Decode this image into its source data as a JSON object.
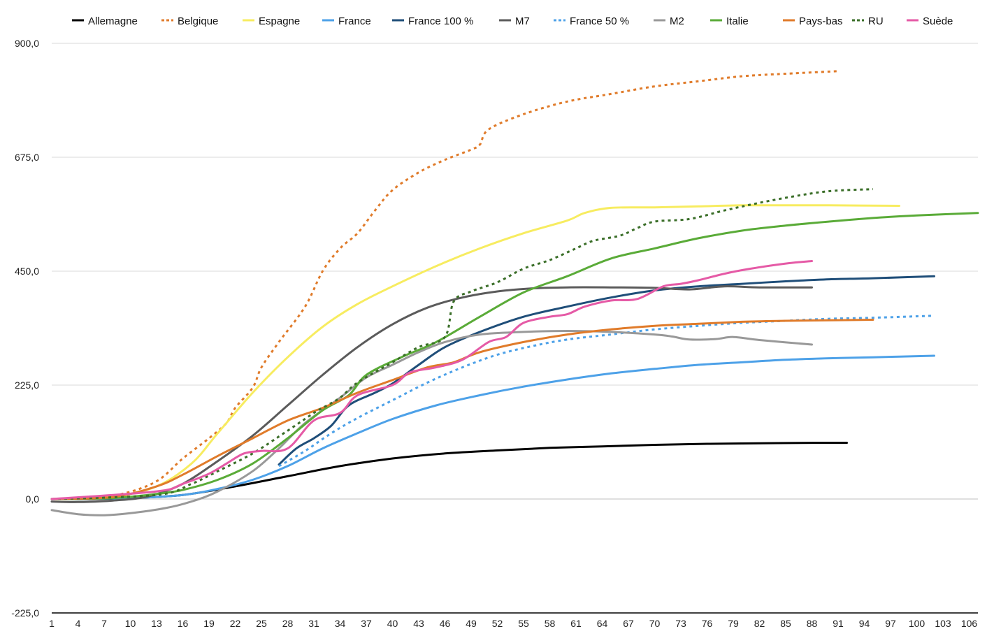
{
  "chart_data": {
    "type": "line",
    "title": "",
    "xlabel": "",
    "ylabel": "",
    "ylim": [
      -225,
      900
    ],
    "xlim": [
      1,
      107
    ],
    "grid": "horizontal",
    "legend_position": "top",
    "yticks": [
      {
        "value": -225,
        "label": "-225,0"
      },
      {
        "value": 0,
        "label": "0,0"
      },
      {
        "value": 225,
        "label": "225,0"
      },
      {
        "value": 450,
        "label": "450,0"
      },
      {
        "value": 675,
        "label": "675,0"
      },
      {
        "value": 900,
        "label": "900,0"
      }
    ],
    "xticks": [
      1,
      4,
      7,
      10,
      13,
      16,
      19,
      22,
      25,
      28,
      31,
      34,
      37,
      40,
      43,
      46,
      49,
      52,
      55,
      58,
      61,
      64,
      67,
      70,
      73,
      76,
      79,
      82,
      85,
      88,
      91,
      94,
      97,
      100,
      103,
      106
    ],
    "series": [
      {
        "name": "Allemagne",
        "color": "#000000",
        "dash": "solid",
        "points": [
          [
            1,
            0
          ],
          [
            5,
            0
          ],
          [
            10,
            2
          ],
          [
            16,
            8
          ],
          [
            22,
            25
          ],
          [
            28,
            45
          ],
          [
            34,
            65
          ],
          [
            40,
            80
          ],
          [
            46,
            90
          ],
          [
            52,
            96
          ],
          [
            58,
            101
          ],
          [
            64,
            104
          ],
          [
            70,
            107
          ],
          [
            76,
            109
          ],
          [
            82,
            110
          ],
          [
            88,
            111
          ],
          [
            92,
            111
          ]
        ]
      },
      {
        "name": "Belgique",
        "color": "#e07b2a",
        "dash": "dashed",
        "points": [
          [
            1,
            0
          ],
          [
            5,
            3
          ],
          [
            9,
            10
          ],
          [
            13,
            35
          ],
          [
            16,
            80
          ],
          [
            19,
            120
          ],
          [
            21,
            150
          ],
          [
            22,
            180
          ],
          [
            24,
            220
          ],
          [
            25,
            260
          ],
          [
            27,
            310
          ],
          [
            30,
            380
          ],
          [
            32,
            450
          ],
          [
            34,
            495
          ],
          [
            36,
            525
          ],
          [
            38,
            570
          ],
          [
            40,
            610
          ],
          [
            43,
            645
          ],
          [
            46,
            670
          ],
          [
            49,
            690
          ],
          [
            50,
            700
          ],
          [
            51,
            730
          ],
          [
            55,
            760
          ],
          [
            60,
            785
          ],
          [
            65,
            800
          ],
          [
            70,
            815
          ],
          [
            75,
            825
          ],
          [
            80,
            835
          ],
          [
            85,
            840
          ],
          [
            91,
            845
          ]
        ]
      },
      {
        "name": "Espagne",
        "color": "#f7ec60",
        "dash": "solid",
        "points": [
          [
            1,
            0
          ],
          [
            8,
            5
          ],
          [
            13,
            25
          ],
          [
            17,
            70
          ],
          [
            20,
            130
          ],
          [
            24,
            210
          ],
          [
            28,
            280
          ],
          [
            32,
            340
          ],
          [
            36,
            385
          ],
          [
            40,
            420
          ],
          [
            45,
            460
          ],
          [
            50,
            495
          ],
          [
            55,
            525
          ],
          [
            60,
            550
          ],
          [
            62,
            565
          ],
          [
            65,
            575
          ],
          [
            70,
            576
          ],
          [
            75,
            578
          ],
          [
            80,
            580
          ],
          [
            85,
            580
          ],
          [
            90,
            580
          ],
          [
            98,
            579
          ]
        ]
      },
      {
        "name": "France",
        "color": "#4da1e8",
        "dash": "solid",
        "points": [
          [
            1,
            0
          ],
          [
            10,
            2
          ],
          [
            16,
            8
          ],
          [
            20,
            20
          ],
          [
            24,
            38
          ],
          [
            28,
            65
          ],
          [
            32,
            100
          ],
          [
            36,
            130
          ],
          [
            40,
            158
          ],
          [
            45,
            185
          ],
          [
            50,
            205
          ],
          [
            55,
            222
          ],
          [
            60,
            236
          ],
          [
            65,
            248
          ],
          [
            70,
            257
          ],
          [
            75,
            265
          ],
          [
            80,
            270
          ],
          [
            85,
            275
          ],
          [
            90,
            278
          ],
          [
            95,
            280
          ],
          [
            102,
            283
          ]
        ]
      },
      {
        "name": "France 100 %",
        "color": "#1f4e79",
        "dash": "solid",
        "points": [
          [
            27,
            68
          ],
          [
            29,
            100
          ],
          [
            31,
            120
          ],
          [
            33,
            145
          ],
          [
            35,
            185
          ],
          [
            38,
            210
          ],
          [
            40,
            228
          ],
          [
            43,
            265
          ],
          [
            46,
            300
          ],
          [
            50,
            330
          ],
          [
            55,
            360
          ],
          [
            60,
            380
          ],
          [
            65,
            398
          ],
          [
            70,
            412
          ],
          [
            75,
            420
          ],
          [
            80,
            425
          ],
          [
            85,
            430
          ],
          [
            90,
            434
          ],
          [
            95,
            436
          ],
          [
            102,
            440
          ]
        ]
      },
      {
        "name": "M7",
        "color": "#5b5b5b",
        "dash": "solid",
        "points": [
          [
            1,
            -5
          ],
          [
            4,
            -6
          ],
          [
            8,
            -3
          ],
          [
            12,
            5
          ],
          [
            16,
            30
          ],
          [
            20,
            75
          ],
          [
            24,
            125
          ],
          [
            28,
            185
          ],
          [
            32,
            245
          ],
          [
            36,
            300
          ],
          [
            40,
            345
          ],
          [
            44,
            378
          ],
          [
            48,
            398
          ],
          [
            52,
            410
          ],
          [
            56,
            416
          ],
          [
            60,
            418
          ],
          [
            65,
            418
          ],
          [
            70,
            417
          ],
          [
            74,
            414
          ],
          [
            78,
            420
          ],
          [
            82,
            418
          ],
          [
            88,
            418
          ]
        ]
      },
      {
        "name": "France 50 %",
        "color": "#4da1e8",
        "dash": "dashed",
        "points": [
          [
            27,
            65
          ],
          [
            30,
            95
          ],
          [
            33,
            130
          ],
          [
            36,
            160
          ],
          [
            40,
            195
          ],
          [
            44,
            230
          ],
          [
            48,
            260
          ],
          [
            52,
            285
          ],
          [
            56,
            302
          ],
          [
            60,
            315
          ],
          [
            65,
            325
          ],
          [
            70,
            335
          ],
          [
            75,
            342
          ],
          [
            80,
            348
          ],
          [
            85,
            352
          ],
          [
            90,
            356
          ],
          [
            95,
            358
          ],
          [
            102,
            362
          ]
        ]
      },
      {
        "name": "M2",
        "color": "#999999",
        "dash": "solid",
        "points": [
          [
            1,
            -22
          ],
          [
            4,
            -30
          ],
          [
            7,
            -32
          ],
          [
            10,
            -28
          ],
          [
            14,
            -18
          ],
          [
            17,
            -5
          ],
          [
            20,
            15
          ],
          [
            24,
            55
          ],
          [
            27,
            100
          ],
          [
            30,
            150
          ],
          [
            34,
            200
          ],
          [
            37,
            240
          ],
          [
            40,
            265
          ],
          [
            43,
            290
          ],
          [
            46,
            310
          ],
          [
            50,
            325
          ],
          [
            55,
            330
          ],
          [
            60,
            332
          ],
          [
            65,
            330
          ],
          [
            70,
            325
          ],
          [
            72,
            321
          ],
          [
            74,
            315
          ],
          [
            77,
            316
          ],
          [
            79,
            320
          ],
          [
            82,
            314
          ],
          [
            88,
            305
          ]
        ]
      },
      {
        "name": "Italie",
        "color": "#5aab38",
        "dash": "solid",
        "points": [
          [
            1,
            0
          ],
          [
            8,
            2
          ],
          [
            13,
            10
          ],
          [
            16,
            18
          ],
          [
            20,
            38
          ],
          [
            24,
            70
          ],
          [
            28,
            120
          ],
          [
            32,
            175
          ],
          [
            35,
            205
          ],
          [
            37,
            245
          ],
          [
            41,
            280
          ],
          [
            45,
            310
          ],
          [
            50,
            360
          ],
          [
            55,
            408
          ],
          [
            60,
            440
          ],
          [
            65,
            475
          ],
          [
            70,
            495
          ],
          [
            75,
            515
          ],
          [
            80,
            530
          ],
          [
            85,
            540
          ],
          [
            90,
            548
          ],
          [
            95,
            555
          ],
          [
            100,
            560
          ],
          [
            107,
            565
          ]
        ]
      },
      {
        "name": "Pays-bas",
        "color": "#e07b2a",
        "dash": "solid",
        "points": [
          [
            1,
            0
          ],
          [
            8,
            4
          ],
          [
            13,
            25
          ],
          [
            16,
            48
          ],
          [
            20,
            85
          ],
          [
            24,
            120
          ],
          [
            28,
            155
          ],
          [
            32,
            180
          ],
          [
            36,
            210
          ],
          [
            40,
            235
          ],
          [
            44,
            260
          ],
          [
            47,
            270
          ],
          [
            50,
            290
          ],
          [
            55,
            310
          ],
          [
            60,
            325
          ],
          [
            65,
            335
          ],
          [
            70,
            342
          ],
          [
            75,
            346
          ],
          [
            80,
            350
          ],
          [
            85,
            352
          ],
          [
            90,
            353
          ],
          [
            95,
            354
          ]
        ]
      },
      {
        "name": "RU",
        "color": "#3a6e28",
        "dash": "dashed",
        "points": [
          [
            1,
            0
          ],
          [
            13,
            8
          ],
          [
            17,
            30
          ],
          [
            20,
            55
          ],
          [
            24,
            90
          ],
          [
            28,
            135
          ],
          [
            31,
            170
          ],
          [
            32,
            180
          ],
          [
            34,
            200
          ],
          [
            36,
            230
          ],
          [
            40,
            270
          ],
          [
            43,
            300
          ],
          [
            46,
            320
          ],
          [
            47,
            390
          ],
          [
            49,
            410
          ],
          [
            52,
            428
          ],
          [
            55,
            455
          ],
          [
            58,
            472
          ],
          [
            61,
            495
          ],
          [
            63,
            510
          ],
          [
            66,
            520
          ],
          [
            68,
            535
          ],
          [
            70,
            548
          ],
          [
            74,
            553
          ],
          [
            78,
            570
          ],
          [
            82,
            585
          ],
          [
            86,
            598
          ],
          [
            90,
            608
          ],
          [
            95,
            612
          ]
        ]
      },
      {
        "name": "Suède",
        "color": "#e55aa6",
        "dash": "solid",
        "points": [
          [
            1,
            0
          ],
          [
            13,
            15
          ],
          [
            16,
            30
          ],
          [
            19,
            50
          ],
          [
            21,
            70
          ],
          [
            23,
            90
          ],
          [
            25,
            95
          ],
          [
            28,
            100
          ],
          [
            31,
            155
          ],
          [
            34,
            170
          ],
          [
            36,
            205
          ],
          [
            40,
            225
          ],
          [
            42,
            250
          ],
          [
            45,
            260
          ],
          [
            48,
            275
          ],
          [
            51,
            310
          ],
          [
            53,
            320
          ],
          [
            55,
            348
          ],
          [
            58,
            360
          ],
          [
            60,
            365
          ],
          [
            62,
            380
          ],
          [
            65,
            392
          ],
          [
            68,
            395
          ],
          [
            71,
            420
          ],
          [
            73,
            425
          ],
          [
            75,
            432
          ],
          [
            78,
            445
          ],
          [
            81,
            455
          ],
          [
            85,
            465
          ],
          [
            88,
            470
          ]
        ]
      }
    ]
  }
}
